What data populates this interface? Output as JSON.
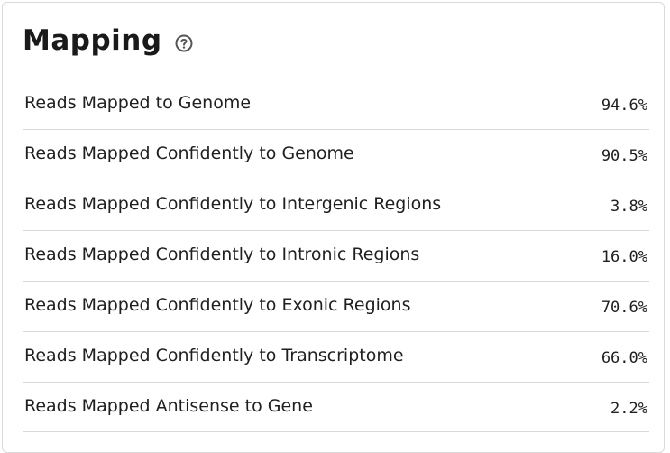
{
  "panel": {
    "title": "Mapping",
    "help_icon": "question-circle-icon"
  },
  "rows": [
    {
      "label": "Reads Mapped to Genome",
      "value": "94.6%"
    },
    {
      "label": "Reads Mapped Confidently to Genome",
      "value": "90.5%"
    },
    {
      "label": "Reads Mapped Confidently to Intergenic Regions",
      "value": "3.8%"
    },
    {
      "label": "Reads Mapped Confidently to Intronic Regions",
      "value": "16.0%"
    },
    {
      "label": "Reads Mapped Confidently to Exonic Regions",
      "value": "70.6%"
    },
    {
      "label": "Reads Mapped Confidently to Transcriptome",
      "value": "66.0%"
    },
    {
      "label": "Reads Mapped Antisense to Gene",
      "value": "2.2%"
    }
  ]
}
